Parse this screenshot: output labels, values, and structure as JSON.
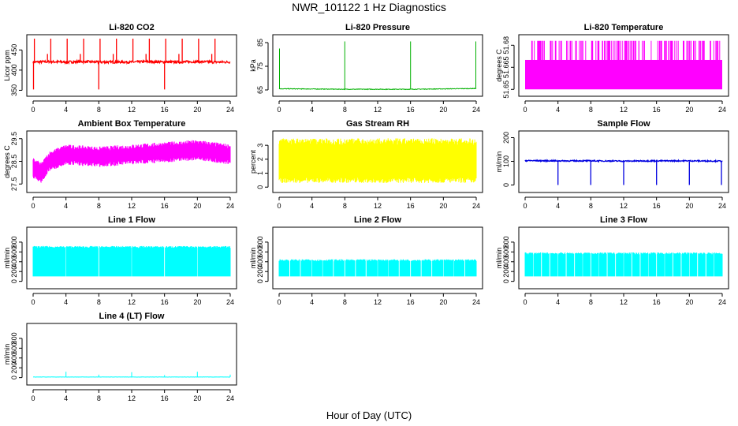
{
  "figure": {
    "title": "NWR_101122  1 Hz Diagnostics",
    "xlabel": "Hour of Day (UTC)"
  },
  "chart_data": [
    {
      "type": "line",
      "title": "Li-820 CO2",
      "ylabel": "Licor ppm",
      "color": "#ff0000",
      "xlim": [
        0,
        24
      ],
      "ylim": [
        345,
        480
      ],
      "xticks": [
        0,
        4,
        8,
        12,
        16,
        20,
        24
      ],
      "yticks": [
        350,
        400,
        450
      ],
      "series": [
        {
          "x": [
            0,
            2,
            4,
            6,
            8,
            10,
            12,
            14,
            16,
            18,
            20,
            22,
            24
          ],
          "y": [
            420,
            421,
            420,
            421,
            420,
            420,
            420,
            421,
            420,
            420,
            421,
            420,
            420
          ]
        }
      ]
    },
    {
      "type": "line",
      "title": "Li-820 Pressure",
      "ylabel": "kPa",
      "color": "#00b000",
      "xlim": [
        0,
        24
      ],
      "ylim": [
        64,
        87
      ],
      "xticks": [
        0,
        4,
        8,
        12,
        16,
        20,
        24
      ],
      "yticks": [
        65,
        75,
        85
      ],
      "series": [
        {
          "x": [
            0,
            8,
            16,
            24
          ],
          "y": [
            65.5,
            65.3,
            65.3,
            65.6
          ]
        }
      ]
    },
    {
      "type": "line",
      "title": "Li-820 Temperature",
      "ylabel": "degrees C",
      "color": "#ff00ff",
      "xlim": [
        0,
        24
      ],
      "ylim": [
        51.648,
        51.685
      ],
      "xticks": [
        0,
        4,
        8,
        12,
        16,
        20,
        24
      ],
      "yticks": [
        51.65,
        51.665,
        51.68
      ],
      "yticklabels": [
        "51.65",
        "51.665",
        "51.68"
      ],
      "series": [
        {
          "low": 51.65,
          "high": 51.67,
          "spike": 51.683
        }
      ]
    },
    {
      "type": "line",
      "title": "Ambient Box Temperature",
      "ylabel": "degrees C",
      "color": "#ff00ff",
      "xlim": [
        0,
        24
      ],
      "ylim": [
        27.3,
        29.7
      ],
      "xticks": [
        0,
        4,
        8,
        12,
        16,
        20,
        24
      ],
      "yticks": [
        27.5,
        28.5,
        29.5
      ],
      "series": [
        {
          "x": [
            0,
            1,
            2,
            4,
            8,
            12,
            16,
            20,
            24
          ],
          "y": [
            28.2,
            28.0,
            28.5,
            28.8,
            28.7,
            28.8,
            28.9,
            29.0,
            28.8
          ]
        }
      ]
    },
    {
      "type": "line",
      "title": "Gas Stream RH",
      "ylabel": "percent",
      "color": "#ffff00",
      "xlim": [
        0,
        24
      ],
      "ylim": [
        -0.1,
        3.8
      ],
      "xticks": [
        0,
        4,
        8,
        12,
        16,
        20,
        24
      ],
      "yticks": [
        0,
        1,
        2,
        3
      ],
      "series": [
        {
          "x": [
            0,
            24
          ],
          "y": [
            1.9,
            1.9
          ]
        }
      ]
    },
    {
      "type": "line",
      "title": "Sample Flow",
      "ylabel": "ml/min",
      "color": "#0000e0",
      "xlim": [
        0,
        24
      ],
      "ylim": [
        -15,
        215
      ],
      "xticks": [
        0,
        4,
        8,
        12,
        16,
        20,
        24
      ],
      "yticks": [
        0,
        100,
        200
      ],
      "series": [
        {
          "x": [
            0,
            4,
            8,
            12,
            16,
            20,
            24
          ],
          "y": [
            103,
            102,
            102,
            101,
            102,
            102,
            101
          ]
        }
      ]
    },
    {
      "type": "line",
      "title": "Line 1 Flow",
      "ylabel": "ml/min",
      "color": "#00ffff",
      "xlim": [
        0,
        24
      ],
      "ylim": [
        -70,
        1040
      ],
      "xticks": [
        0,
        4,
        8,
        12,
        16,
        20,
        24
      ],
      "yticks": [
        0,
        200,
        400,
        600,
        800
      ],
      "series": [
        {
          "low": 100,
          "high": 700
        }
      ]
    },
    {
      "type": "line",
      "title": "Line 2 Flow",
      "ylabel": "ml/min",
      "color": "#00ffff",
      "xlim": [
        0,
        24
      ],
      "ylim": [
        -70,
        1040
      ],
      "xticks": [
        0,
        4,
        8,
        12,
        16,
        20,
        24
      ],
      "yticks": [
        0,
        200,
        400,
        600,
        800
      ],
      "series": [
        {
          "low": 100,
          "high": 430
        }
      ]
    },
    {
      "type": "line",
      "title": "Line 3 Flow",
      "ylabel": "ml/min",
      "color": "#00ffff",
      "xlim": [
        0,
        24
      ],
      "ylim": [
        -70,
        1040
      ],
      "xticks": [
        0,
        4,
        8,
        12,
        16,
        20,
        24
      ],
      "yticks": [
        0,
        200,
        400,
        600,
        800
      ],
      "series": [
        {
          "low": 100,
          "high": 570
        }
      ]
    },
    {
      "type": "line",
      "title": "Line 4 (LT) Flow",
      "ylabel": "ml/min",
      "color": "#00ffff",
      "xlim": [
        0,
        24
      ],
      "ylim": [
        -70,
        1040
      ],
      "xticks": [
        0,
        4,
        8,
        12,
        16,
        20,
        24
      ],
      "yticks": [
        0,
        200,
        400,
        600,
        800
      ],
      "series": [
        {
          "x": [
            0,
            4,
            8,
            12,
            16,
            20,
            24
          ],
          "y": [
            10,
            10,
            10,
            10,
            10,
            10,
            10
          ]
        }
      ]
    }
  ]
}
